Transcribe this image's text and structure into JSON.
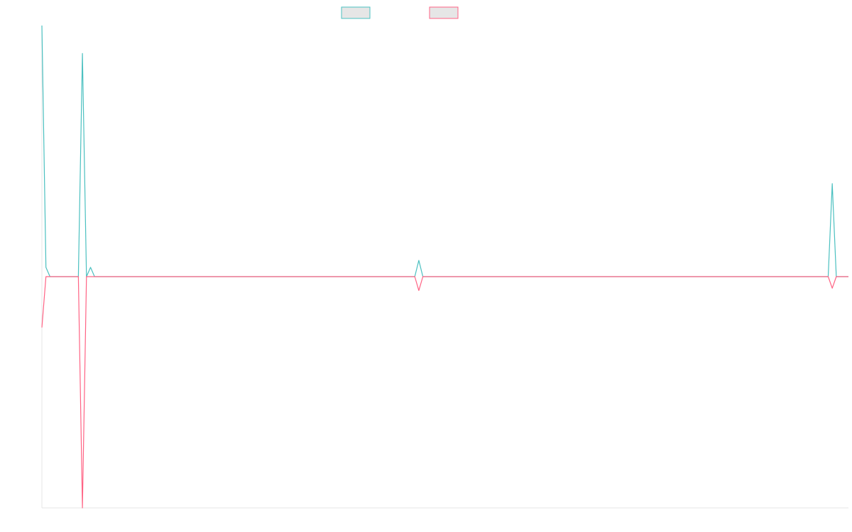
{
  "chart_data": {
    "type": "line",
    "title": "",
    "xlabel": "",
    "ylabel": "",
    "x_count": 200,
    "ylim": [
      -1,
      1.08
    ],
    "grid": false,
    "legend_position": "top",
    "legend": [
      {
        "name": "",
        "color": "#4bc0c0"
      },
      {
        "name": "",
        "color": "#ff6384"
      }
    ],
    "series": [
      {
        "name": "",
        "color": "#4bc0c0",
        "points": [
          [
            0,
            1.08
          ],
          [
            1,
            0.04
          ],
          [
            2,
            0
          ],
          [
            9,
            0
          ],
          [
            10,
            0.96
          ],
          [
            11,
            0
          ],
          [
            12,
            0.04
          ],
          [
            13,
            0
          ],
          [
            21,
            0
          ],
          [
            22,
            0
          ],
          [
            23,
            0
          ],
          [
            92,
            0
          ],
          [
            93,
            0.07
          ],
          [
            94,
            0
          ],
          [
            194,
            0
          ],
          [
            195,
            0.4
          ],
          [
            196,
            0
          ],
          [
            199,
            0
          ]
        ]
      },
      {
        "name": "",
        "color": "#ff6384",
        "points": [
          [
            0,
            -0.22
          ],
          [
            1,
            0
          ],
          [
            9,
            0
          ],
          [
            10,
            -1
          ],
          [
            11,
            0
          ],
          [
            92,
            0
          ],
          [
            93,
            -0.06
          ],
          [
            94,
            0
          ],
          [
            194,
            0
          ],
          [
            195,
            -0.05
          ],
          [
            196,
            0
          ],
          [
            199,
            0
          ]
        ]
      }
    ]
  }
}
